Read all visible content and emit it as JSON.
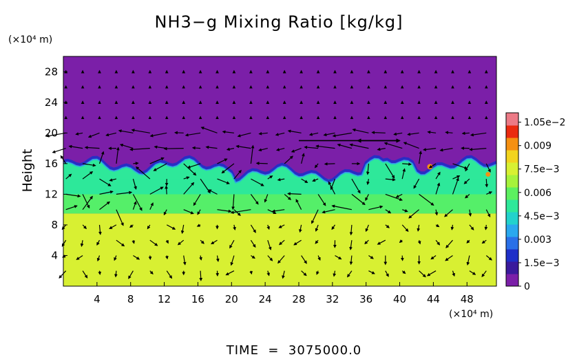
{
  "chart_data": {
    "type": "heatmap",
    "title": "NH3−g Mixing Ratio [kg/kg]",
    "ylabel": "Height",
    "x_unit_label": "(×10⁴ m)",
    "y_unit_label": "(×10⁴ m)",
    "footer": "TIME  =  3075000.0",
    "xlim": [
      0,
      51.5
    ],
    "ylim": [
      0,
      30
    ],
    "x_ticks": [
      "4",
      "8",
      "12",
      "16",
      "20",
      "24",
      "28",
      "32",
      "36",
      "40",
      "44",
      "48"
    ],
    "x_tick_values": [
      4,
      8,
      12,
      16,
      20,
      24,
      28,
      32,
      36,
      40,
      44,
      48
    ],
    "y_ticks": [
      "4",
      "8",
      "12",
      "16",
      "20",
      "24",
      "28"
    ],
    "y_tick_values": [
      4,
      8,
      12,
      16,
      20,
      24,
      28
    ],
    "colorbar": {
      "min": 0,
      "max": 0.0111,
      "tick_labels": [
        "1.05e−2",
        "0.009",
        "7.5e−3",
        "0.006",
        "4.5e−3",
        "0.003",
        "1.5e−3",
        "0"
      ],
      "tick_values": [
        0.0105,
        0.009,
        0.0075,
        0.006,
        0.0045,
        0.003,
        0.0015,
        0
      ],
      "colors": [
        "#7b1fa8",
        "#3a1a9c",
        "#1f2fc8",
        "#2a70e8",
        "#2aa8ee",
        "#22d2cc",
        "#2ee89a",
        "#5cf060",
        "#a6f23c",
        "#d8f032",
        "#f2d41e",
        "#f59012",
        "#ea2a10",
        "#ec7a86"
      ]
    },
    "fields": {
      "upper_layer_value": 0,
      "lower_layer_value": 0.0078,
      "cloud_layer_value": 0.0048,
      "cloud_layer_height_range": [
        10,
        16
      ],
      "cloud_top_height": 16,
      "lower_layer_top_height": 9.5
    },
    "vectors": {
      "grid_x_step": 2,
      "grid_y_step": 2,
      "note_on_plot": ""
    }
  }
}
